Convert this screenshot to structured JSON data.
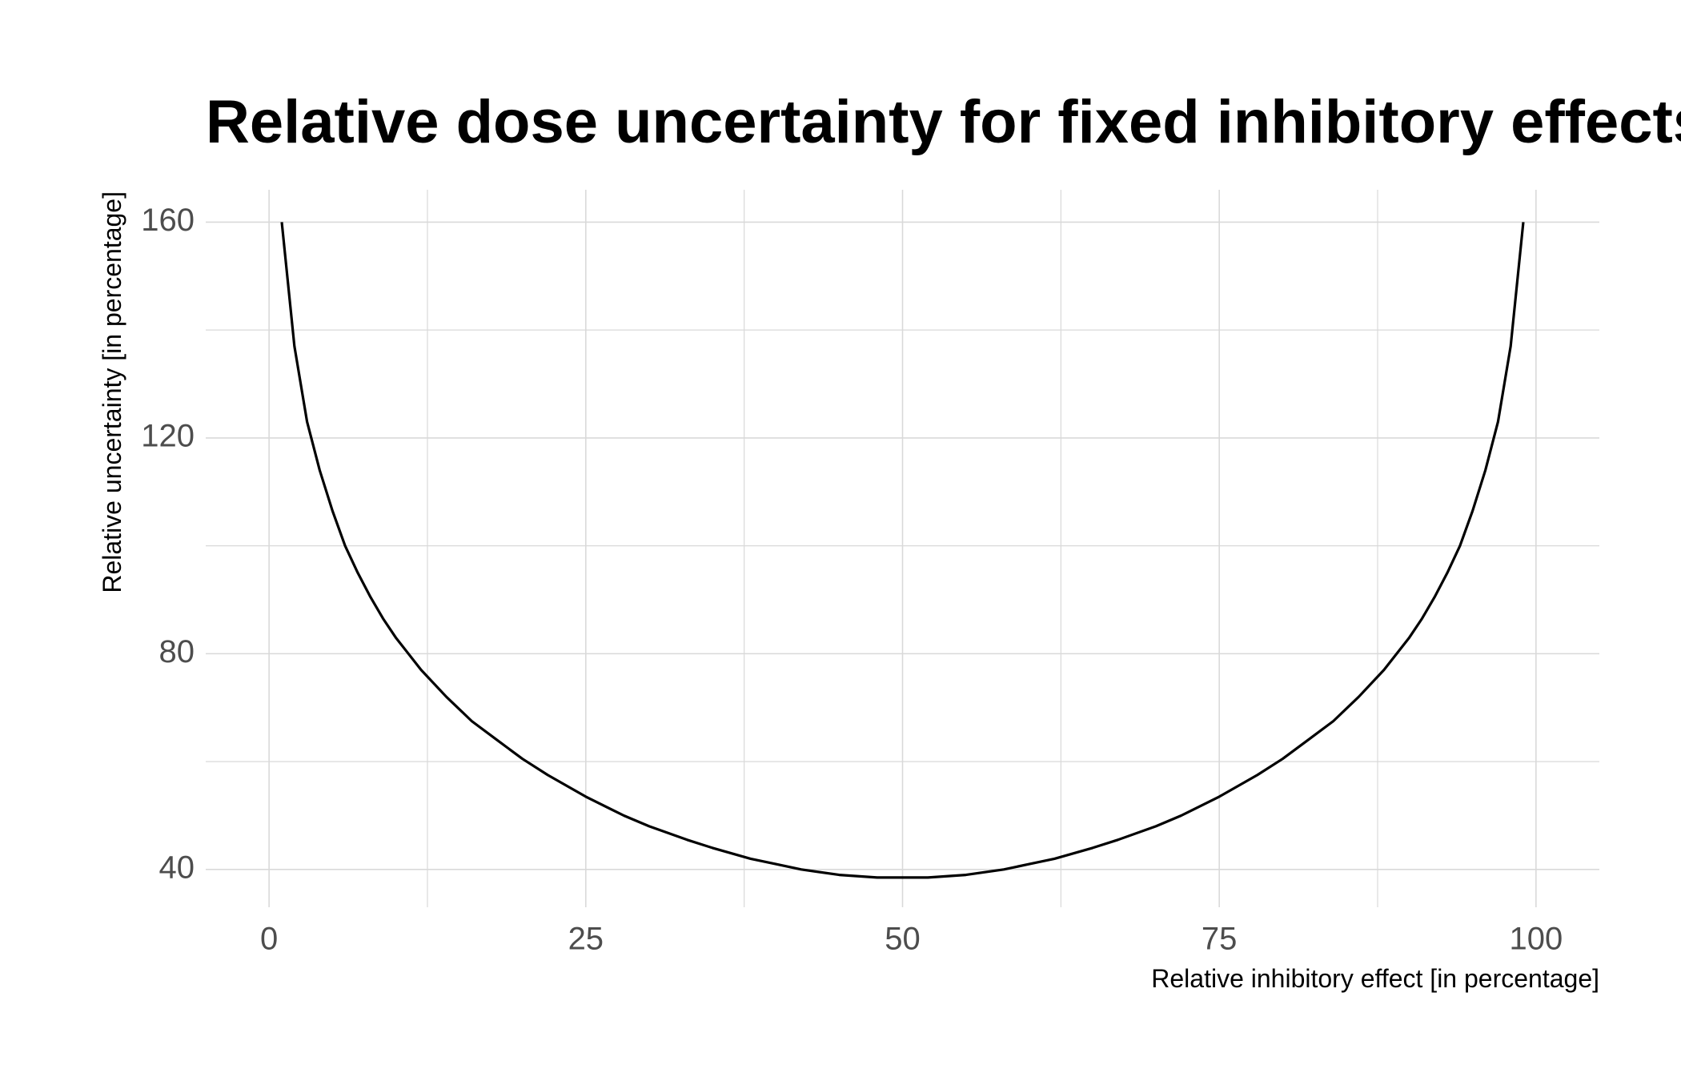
{
  "chart_data": {
    "type": "line",
    "title": "Relative dose uncertainty for fixed inhibitory effects",
    "xlabel": "Relative inhibitory effect [in percentage]",
    "ylabel": "Relative uncertainty [in percentage]",
    "xlim": [
      -5,
      105
    ],
    "ylim": [
      33,
      166
    ],
    "x_ticks": [
      0,
      25,
      50,
      75,
      100
    ],
    "x_tick_labels": [
      "0",
      "25",
      "50",
      "75",
      "100"
    ],
    "x_minor_ticks": [
      12.5,
      37.5,
      62.5,
      87.5
    ],
    "y_ticks": [
      40,
      80,
      120,
      160
    ],
    "y_tick_labels": [
      "40",
      "80",
      "120",
      "160"
    ],
    "y_minor_ticks": [
      60,
      100,
      140
    ],
    "grid": true,
    "legend": "none",
    "series": [
      {
        "color": "#000000",
        "x": [
          1,
          2,
          3,
          4,
          5,
          6,
          7,
          8,
          9,
          10,
          12,
          14,
          16,
          18,
          20,
          22,
          25,
          28,
          30,
          33,
          35,
          38,
          40,
          42,
          45,
          48,
          50,
          52,
          55,
          58,
          60,
          62,
          65,
          67,
          70,
          72,
          75,
          78,
          80,
          82,
          84,
          86,
          88,
          90,
          91,
          92,
          93,
          94,
          95,
          96,
          97,
          98,
          99
        ],
        "y": [
          160,
          137,
          123,
          114,
          106.5,
          100,
          95,
          90.5,
          86.5,
          83,
          77,
          72,
          67.5,
          64,
          60.5,
          57.5,
          53.5,
          50,
          48,
          45.5,
          44,
          42,
          41,
          40,
          39,
          38.5,
          38.5,
          38.5,
          39,
          40,
          41,
          42,
          44,
          45.5,
          48,
          50,
          53.5,
          57.5,
          60.5,
          64,
          67.5,
          72,
          77,
          83,
          86.5,
          90.5,
          95,
          100,
          106.5,
          114,
          123,
          137,
          160
        ]
      }
    ]
  }
}
